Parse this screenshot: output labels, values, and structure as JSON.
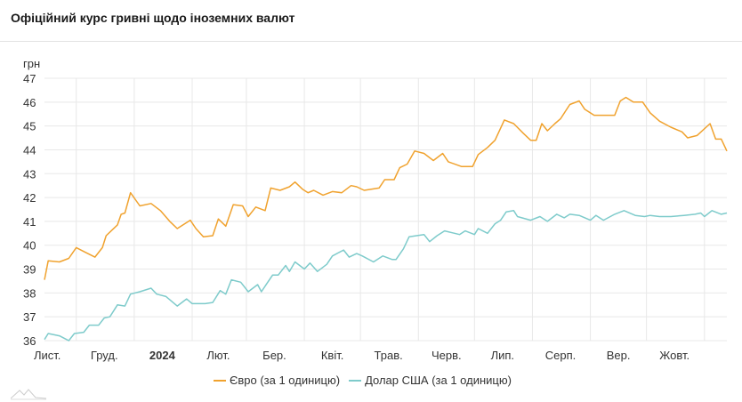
{
  "header": {
    "title": "Офіційний курс гривні щодо іноземних валют"
  },
  "chart_data": {
    "type": "line",
    "title": "Офіційний курс гривні щодо іноземних валют",
    "ylabel": "грн",
    "xlabel": "",
    "ylim": [
      36,
      47
    ],
    "xlim": [
      0,
      365
    ],
    "x_unit": "days since start of series (mid-Nov 2023)",
    "yticks": [
      36,
      37,
      38,
      39,
      40,
      41,
      42,
      43,
      44,
      45,
      46,
      47
    ],
    "grid": true,
    "legend_position": "bottom",
    "month_ticks": [
      17,
      48,
      79,
      108,
      139,
      169,
      200,
      230,
      261,
      292,
      322,
      353
    ],
    "xtick_labels": [
      {
        "label": "Лист.",
        "at": 0,
        "bold": false
      },
      {
        "label": "Груд.",
        "at": 32,
        "bold": false
      },
      {
        "label": "2024",
        "at": 63,
        "bold": true
      },
      {
        "label": "Лют.",
        "at": 93,
        "bold": false
      },
      {
        "label": "Бер.",
        "at": 123,
        "bold": false
      },
      {
        "label": "Квіт.",
        "at": 154,
        "bold": false
      },
      {
        "label": "Трав.",
        "at": 184,
        "bold": false
      },
      {
        "label": "Черв.",
        "at": 215,
        "bold": false
      },
      {
        "label": "Лип.",
        "at": 245,
        "bold": false
      },
      {
        "label": "Серп.",
        "at": 276,
        "bold": false
      },
      {
        "label": "Вер.",
        "at": 307,
        "bold": false
      },
      {
        "label": "Жовт.",
        "at": 337,
        "bold": false
      }
    ],
    "series": [
      {
        "name": "Євро (за 1 одиницю)",
        "color": "#f0a22e",
        "x": [
          0,
          2,
          8,
          13,
          17,
          22,
          27,
          31,
          33,
          39,
          41,
          43,
          46,
          51,
          57,
          62,
          67,
          71,
          78,
          81,
          85,
          90,
          93,
          97,
          101,
          106,
          109,
          113,
          118,
          121,
          126,
          131,
          134,
          138,
          141,
          144,
          149,
          154,
          159,
          164,
          167,
          171,
          179,
          182,
          187,
          190,
          194,
          198,
          203,
          208,
          213,
          216,
          223,
          229,
          232,
          237,
          241,
          246,
          251,
          256,
          260,
          263,
          266,
          269,
          273,
          276,
          281,
          286,
          289,
          294,
          300,
          305,
          308,
          311,
          315,
          320,
          324,
          329,
          335,
          341,
          344,
          349,
          356,
          359,
          362,
          365
        ],
        "values": [
          38.55,
          39.35,
          39.3,
          39.45,
          39.9,
          39.7,
          39.5,
          39.9,
          40.4,
          40.85,
          41.3,
          41.35,
          42.2,
          41.65,
          41.75,
          41.45,
          41.0,
          40.7,
          41.05,
          40.7,
          40.35,
          40.4,
          41.1,
          40.8,
          41.7,
          41.65,
          41.2,
          41.6,
          41.45,
          42.4,
          42.3,
          42.45,
          42.65,
          42.35,
          42.2,
          42.3,
          42.1,
          42.25,
          42.2,
          42.5,
          42.45,
          42.3,
          42.4,
          42.75,
          42.75,
          43.25,
          43.4,
          43.95,
          43.85,
          43.55,
          43.85,
          43.5,
          43.3,
          43.3,
          43.8,
          44.1,
          44.4,
          45.25,
          45.1,
          44.7,
          44.4,
          44.4,
          45.1,
          44.8,
          45.1,
          45.3,
          45.9,
          46.05,
          45.7,
          45.45,
          45.45,
          45.45,
          46.05,
          46.2,
          46.0,
          46.0,
          45.55,
          45.2,
          44.95,
          44.75,
          44.5,
          44.6,
          45.1,
          44.45,
          44.45,
          43.95
        ]
      },
      {
        "name": "Долар США (за 1 одиницю)",
        "color": "#7ecbcb",
        "x": [
          0,
          2,
          8,
          13,
          16,
          21,
          24,
          29,
          32,
          35,
          39,
          43,
          46,
          51,
          57,
          60,
          65,
          71,
          76,
          79,
          86,
          90,
          94,
          97,
          100,
          105,
          109,
          114,
          116,
          119,
          122,
          125,
          129,
          131,
          134,
          139,
          142,
          146,
          151,
          154,
          160,
          163,
          167,
          170,
          176,
          181,
          186,
          188,
          192,
          195,
          203,
          206,
          210,
          214,
          222,
          225,
          230,
          232,
          237,
          241,
          244,
          247,
          251,
          253,
          260,
          265,
          269,
          274,
          278,
          281,
          286,
          292,
          295,
          299,
          305,
          310,
          316,
          321,
          324,
          329,
          335,
          342,
          348,
          351,
          353,
          357,
          362,
          365
        ],
        "values": [
          36.05,
          36.3,
          36.2,
          36.0,
          36.3,
          36.35,
          36.65,
          36.65,
          36.95,
          37.0,
          37.5,
          37.45,
          37.95,
          38.05,
          38.2,
          37.95,
          37.85,
          37.45,
          37.75,
          37.55,
          37.55,
          37.6,
          38.1,
          37.95,
          38.55,
          38.45,
          38.05,
          38.35,
          38.05,
          38.4,
          38.75,
          38.75,
          39.15,
          38.9,
          39.3,
          39.0,
          39.25,
          38.9,
          39.2,
          39.55,
          39.8,
          39.5,
          39.65,
          39.55,
          39.3,
          39.55,
          39.4,
          39.4,
          39.85,
          40.35,
          40.45,
          40.15,
          40.4,
          40.6,
          40.45,
          40.6,
          40.45,
          40.7,
          40.5,
          40.9,
          41.05,
          41.4,
          41.45,
          41.2,
          41.05,
          41.2,
          41.0,
          41.3,
          41.15,
          41.3,
          41.25,
          41.05,
          41.25,
          41.05,
          41.3,
          41.45,
          41.25,
          41.2,
          41.25,
          41.2,
          41.2,
          41.25,
          41.3,
          41.35,
          41.2,
          41.45,
          41.3,
          41.35
        ]
      }
    ]
  }
}
